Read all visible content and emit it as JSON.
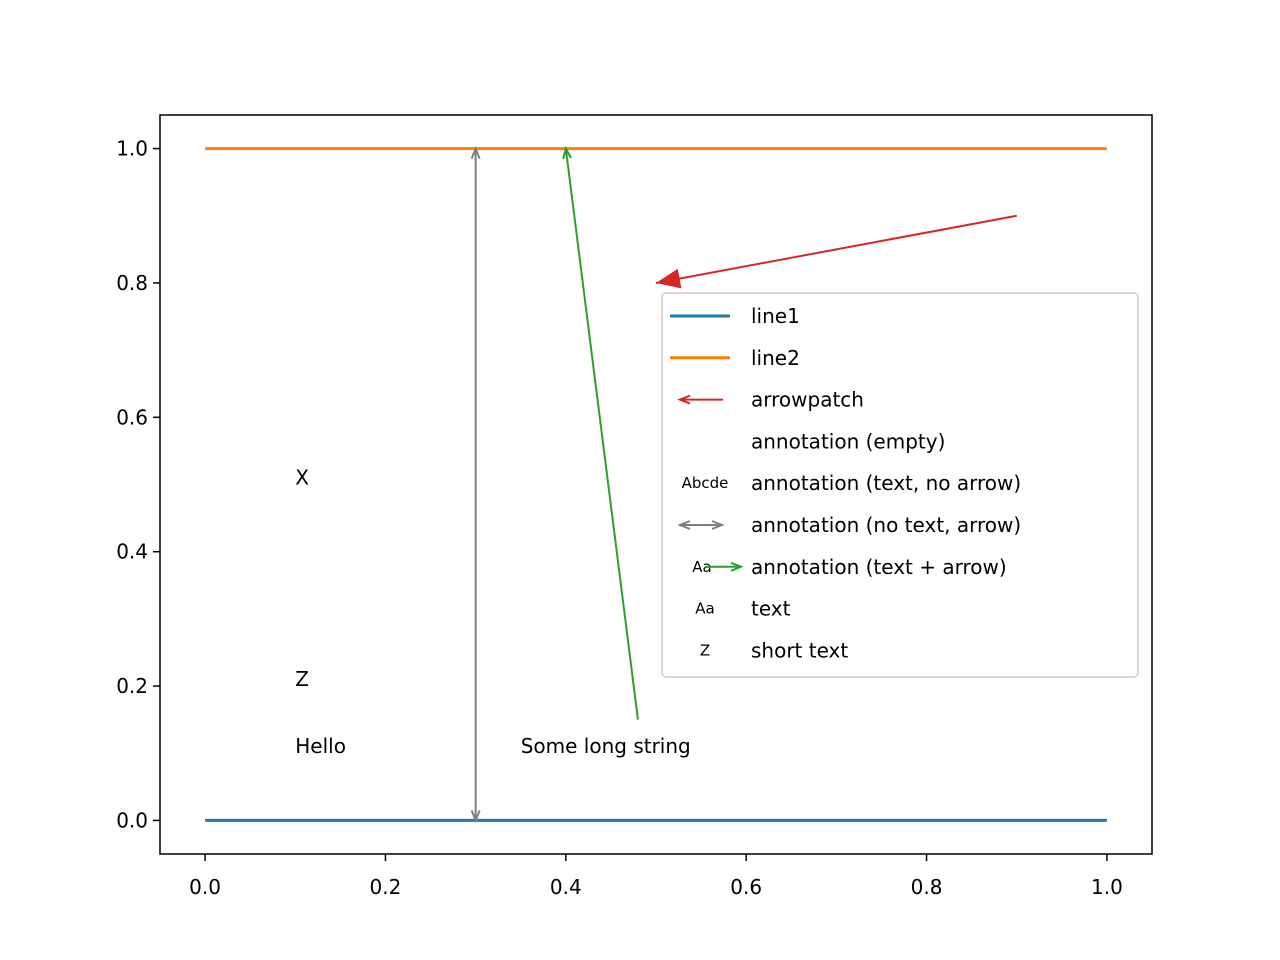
{
  "chart_data": {
    "type": "line",
    "xlim": [
      -0.05,
      1.05
    ],
    "ylim": [
      -0.05,
      1.05
    ],
    "xticks": [
      {
        "value": 0,
        "label": "0.0"
      },
      0.2,
      0.4,
      0.6,
      0.8,
      {
        "value": 1,
        "label": "1.0"
      }
    ],
    "yticks": [
      {
        "value": 0,
        "label": "0.0"
      },
      0.2,
      0.4,
      0.6,
      0.8,
      {
        "value": 1,
        "label": "1.0"
      }
    ],
    "series": [
      {
        "name": "line1",
        "color": "#1f77b4",
        "x": [
          0,
          1
        ],
        "values": [
          0,
          0
        ]
      },
      {
        "name": "line2",
        "color": "#ff7f0e",
        "x": [
          0,
          1
        ],
        "values": [
          1,
          1
        ]
      }
    ],
    "annotations": [
      {
        "label": "arrowpatch",
        "color": "#d62728",
        "arrow": "simple",
        "xytext": [
          0.9,
          0.9
        ],
        "xy": [
          0.5,
          0.8
        ]
      },
      {
        "label": "annotation (empty)"
      },
      {
        "label": "annotation (text, no arrow)",
        "text": "X",
        "handle_text": "Abcde",
        "color": "#2ca02c",
        "xytext": [
          0.1,
          0.5
        ]
      },
      {
        "label": "annotation (no text, arrow)",
        "color": "#7f7f7f",
        "arrow": "<->",
        "xytext": [
          0.3,
          0
        ],
        "xy": [
          0.3,
          1
        ]
      },
      {
        "label": "annotation (text + arrow)",
        "text": "Some long string",
        "handle_text": "Aa",
        "color": "#ff7f0e",
        "arrow_color": "#2ca02c",
        "arrow": "->",
        "xytext": [
          0.35,
          0.1
        ],
        "arrow_start": [
          0.48,
          0.15
        ],
        "xy": [
          0.4,
          1
        ]
      },
      {
        "label": "text",
        "text": "Hello",
        "handle_text": "Aa",
        "color": "#8c564b",
        "xytext": [
          0.1,
          0.1
        ]
      },
      {
        "label": "short text",
        "text": "Z",
        "handle_text": "Z",
        "color": "#1f77b4",
        "xytext": [
          0.1,
          0.2
        ]
      }
    ]
  }
}
